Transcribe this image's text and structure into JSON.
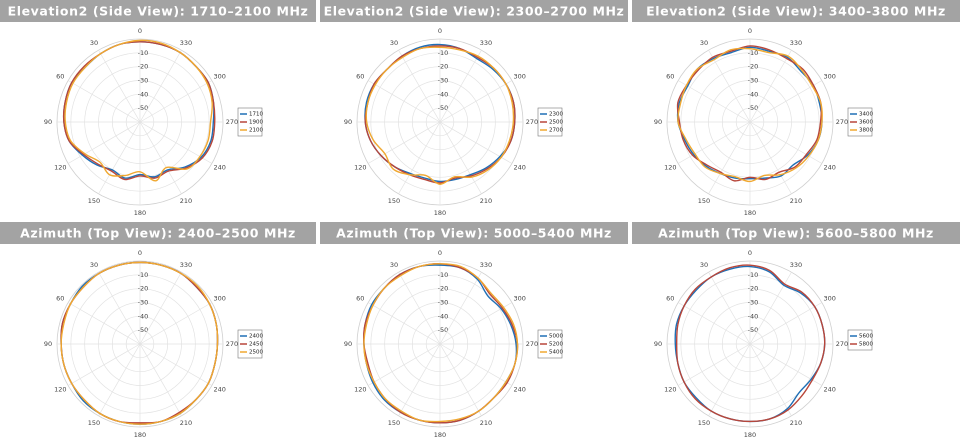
{
  "chart_data": [
    {
      "type": "polar",
      "title": "Elevation2 (Side View): 1710–2100 MHz",
      "x": [
        0,
        15,
        30,
        45,
        60,
        75,
        90,
        105,
        120,
        135,
        150,
        165,
        180,
        195,
        210,
        225,
        240,
        255,
        270,
        285,
        300,
        315,
        330,
        345
      ],
      "xticks": [
        0,
        30,
        60,
        90,
        120,
        150,
        180,
        210,
        240,
        270,
        300,
        330
      ],
      "ylim": [
        -60,
        0
      ],
      "yticks": [
        -10,
        -20,
        -30,
        -40,
        -50
      ],
      "grid": true,
      "legend": "right",
      "series": [
        {
          "name": "1710",
          "color": "#1f6fb5",
          "values": [
            -2,
            -2,
            -3,
            -4,
            -3,
            -4,
            -5,
            -7,
            -12,
            -16,
            -20,
            -18,
            -22,
            -19,
            -20,
            -14,
            -9,
            -7,
            -7,
            -5,
            -3,
            -3,
            -2,
            -2
          ]
        },
        {
          "name": "1900",
          "color": "#b8463a",
          "values": [
            -2,
            -2,
            -3,
            -3,
            -3,
            -4,
            -5,
            -7,
            -13,
            -17,
            -19,
            -17,
            -21,
            -18,
            -19,
            -13,
            -8,
            -6,
            -6,
            -5,
            -3,
            -3,
            -2,
            -2
          ]
        },
        {
          "name": "2100",
          "color": "#f0a830",
          "values": [
            -1,
            -2,
            -3,
            -4,
            -4,
            -5,
            -6,
            -8,
            -14,
            -19,
            -16,
            -20,
            -24,
            -16,
            -22,
            -12,
            -10,
            -9,
            -9,
            -6,
            -4,
            -3,
            -2,
            -1
          ]
        }
      ]
    },
    {
      "type": "polar",
      "title": "Elevation2 (Side View): 2300–2700 MHz",
      "x": [
        0,
        15,
        30,
        45,
        60,
        75,
        90,
        105,
        120,
        135,
        150,
        165,
        180,
        195,
        210,
        225,
        240,
        255,
        270,
        285,
        300,
        315,
        330,
        345
      ],
      "xticks": [
        0,
        30,
        60,
        90,
        120,
        150,
        180,
        210,
        240,
        270,
        300,
        330
      ],
      "ylim": [
        -60,
        0
      ],
      "yticks": [
        -10,
        -20,
        -30,
        -40,
        -50
      ],
      "grid": true,
      "legend": "right",
      "series": [
        {
          "name": "2300",
          "color": "#1f6fb5",
          "values": [
            -4,
            -4,
            -5,
            -6,
            -5,
            -5,
            -6,
            -8,
            -11,
            -14,
            -17,
            -18,
            -17,
            -17,
            -16,
            -13,
            -10,
            -7,
            -6,
            -5,
            -5,
            -6,
            -7,
            -5
          ]
        },
        {
          "name": "2500",
          "color": "#b8463a",
          "values": [
            -5,
            -5,
            -5,
            -6,
            -5,
            -6,
            -6,
            -8,
            -11,
            -14,
            -16,
            -17,
            -16,
            -18,
            -15,
            -12,
            -9,
            -7,
            -6,
            -5,
            -5,
            -5,
            -6,
            -5
          ]
        },
        {
          "name": "2700",
          "color": "#f0a830",
          "values": [
            -6,
            -5,
            -6,
            -6,
            -6,
            -6,
            -7,
            -10,
            -14,
            -12,
            -16,
            -20,
            -15,
            -19,
            -14,
            -11,
            -9,
            -8,
            -7,
            -6,
            -5,
            -5,
            -5,
            -6
          ]
        }
      ]
    },
    {
      "type": "polar",
      "title": "Elevation2 (Side View): 3400-3800 MHz",
      "x": [
        0,
        15,
        30,
        45,
        60,
        75,
        90,
        105,
        120,
        135,
        150,
        165,
        180,
        195,
        210,
        225,
        240,
        255,
        270,
        285,
        300,
        315,
        330,
        345
      ],
      "xticks": [
        0,
        30,
        60,
        90,
        120,
        150,
        180,
        210,
        240,
        270,
        300,
        330
      ],
      "ylim": [
        -60,
        0
      ],
      "yticks": [
        -10,
        -20,
        -30,
        -40,
        -50
      ],
      "grid": true,
      "legend": "right",
      "series": [
        {
          "name": "3400",
          "color": "#1f6fb5",
          "values": [
            -6,
            -8,
            -7,
            -6,
            -8,
            -7,
            -8,
            -11,
            -13,
            -15,
            -17,
            -18,
            -19,
            -18,
            -15,
            -16,
            -12,
            -9,
            -8,
            -8,
            -7,
            -8,
            -6,
            -7
          ]
        },
        {
          "name": "3600",
          "color": "#b8463a",
          "values": [
            -5,
            -7,
            -6,
            -7,
            -7,
            -6,
            -9,
            -10,
            -12,
            -16,
            -18,
            -16,
            -20,
            -17,
            -18,
            -14,
            -13,
            -10,
            -9,
            -7,
            -7,
            -6,
            -7,
            -6
          ]
        },
        {
          "name": "3800",
          "color": "#f0a830",
          "values": [
            -7,
            -6,
            -8,
            -6,
            -7,
            -8,
            -8,
            -12,
            -14,
            -14,
            -17,
            -19,
            -17,
            -20,
            -16,
            -13,
            -11,
            -9,
            -8,
            -7,
            -8,
            -7,
            -5,
            -8
          ]
        }
      ]
    },
    {
      "type": "polar",
      "title": "Azimuth (Top View): 2400–2500 MHz",
      "x": [
        0,
        15,
        30,
        45,
        60,
        75,
        90,
        105,
        120,
        135,
        150,
        165,
        180,
        195,
        210,
        225,
        240,
        255,
        270,
        285,
        300,
        315,
        330,
        345
      ],
      "xticks": [
        0,
        30,
        60,
        90,
        120,
        150,
        180,
        210,
        240,
        270,
        300,
        330
      ],
      "ylim": [
        -60,
        0
      ],
      "yticks": [
        -10,
        -20,
        -30,
        -40,
        -50
      ],
      "grid": true,
      "legend": "right",
      "series": [
        {
          "name": "2400",
          "color": "#1f6fb5",
          "values": [
            -1,
            -1,
            -1,
            -1,
            -2,
            -2,
            -3,
            -3,
            -3,
            -2,
            -2,
            -2,
            -2,
            -2,
            -2,
            -3,
            -3,
            -4,
            -4,
            -3,
            -2,
            -2,
            -1,
            -1
          ]
        },
        {
          "name": "2450",
          "color": "#b8463a",
          "values": [
            -1,
            -1,
            -1,
            -2,
            -2,
            -2,
            -3,
            -3,
            -3,
            -3,
            -2,
            -2,
            -3,
            -2,
            -3,
            -3,
            -3,
            -4,
            -4,
            -3,
            -2,
            -2,
            -1,
            -1
          ]
        },
        {
          "name": "2500",
          "color": "#f0a830",
          "values": [
            -1,
            -1,
            -1,
            -2,
            -2,
            -3,
            -3,
            -3,
            -3,
            -3,
            -2,
            -2,
            -2,
            -2,
            -2,
            -3,
            -3,
            -4,
            -4,
            -3,
            -2,
            -1,
            -1,
            -1
          ]
        }
      ]
    },
    {
      "type": "polar",
      "title": "Azimuth (Top View): 5000–5400 MHz",
      "x": [
        0,
        15,
        30,
        45,
        60,
        75,
        90,
        105,
        120,
        135,
        150,
        165,
        180,
        195,
        210,
        225,
        240,
        255,
        270,
        285,
        300,
        315,
        330,
        345
      ],
      "xticks": [
        0,
        30,
        60,
        90,
        120,
        150,
        180,
        210,
        240,
        270,
        300,
        330
      ],
      "ylim": [
        -60,
        0
      ],
      "yticks": [
        -10,
        -20,
        -30,
        -40,
        -50
      ],
      "grid": true,
      "legend": "right",
      "series": [
        {
          "name": "5000",
          "color": "#1f6fb5",
          "values": [
            -3,
            -2,
            -2,
            -3,
            -3,
            -4,
            -5,
            -5,
            -4,
            -3,
            -3,
            -3,
            -3,
            -3,
            -4,
            -5,
            -5,
            -4,
            -5,
            -7,
            -9,
            -11,
            -6,
            -3
          ]
        },
        {
          "name": "5200",
          "color": "#b8463a",
          "values": [
            -2,
            -2,
            -2,
            -3,
            -4,
            -4,
            -5,
            -6,
            -5,
            -4,
            -3,
            -3,
            -3,
            -3,
            -4,
            -5,
            -4,
            -4,
            -4,
            -6,
            -8,
            -9,
            -5,
            -3
          ]
        },
        {
          "name": "5400",
          "color": "#f0a830",
          "values": [
            -2,
            -2,
            -3,
            -3,
            -4,
            -5,
            -5,
            -5,
            -5,
            -4,
            -4,
            -3,
            -4,
            -4,
            -4,
            -5,
            -5,
            -4,
            -4,
            -5,
            -7,
            -8,
            -5,
            -2
          ]
        }
      ]
    },
    {
      "type": "polar",
      "title": "Azimuth (Top View): 5600–5800 MHz",
      "x": [
        0,
        15,
        30,
        45,
        60,
        75,
        90,
        105,
        120,
        135,
        150,
        165,
        180,
        195,
        210,
        225,
        240,
        255,
        270,
        285,
        300,
        315,
        330,
        345
      ],
      "xticks": [
        0,
        30,
        60,
        90,
        120,
        150,
        180,
        210,
        240,
        270,
        300,
        330
      ],
      "ylim": [
        -60,
        0
      ],
      "yticks": [
        -10,
        -20,
        -30,
        -40,
        -50
      ],
      "grid": true,
      "legend": "right",
      "series": [
        {
          "name": "5600",
          "color": "#1f6fb5",
          "values": [
            -4,
            -4,
            -4,
            -5,
            -5,
            -5,
            -6,
            -6,
            -5,
            -5,
            -4,
            -4,
            -4,
            -4,
            -6,
            -10,
            -9,
            -7,
            -6,
            -6,
            -6,
            -8,
            -11,
            -6
          ]
        },
        {
          "name": "5800",
          "color": "#b8463a",
          "values": [
            -3,
            -3,
            -4,
            -4,
            -5,
            -6,
            -7,
            -6,
            -5,
            -4,
            -4,
            -4,
            -4,
            -4,
            -5,
            -7,
            -8,
            -7,
            -6,
            -6,
            -6,
            -7,
            -10,
            -5
          ]
        }
      ]
    }
  ]
}
